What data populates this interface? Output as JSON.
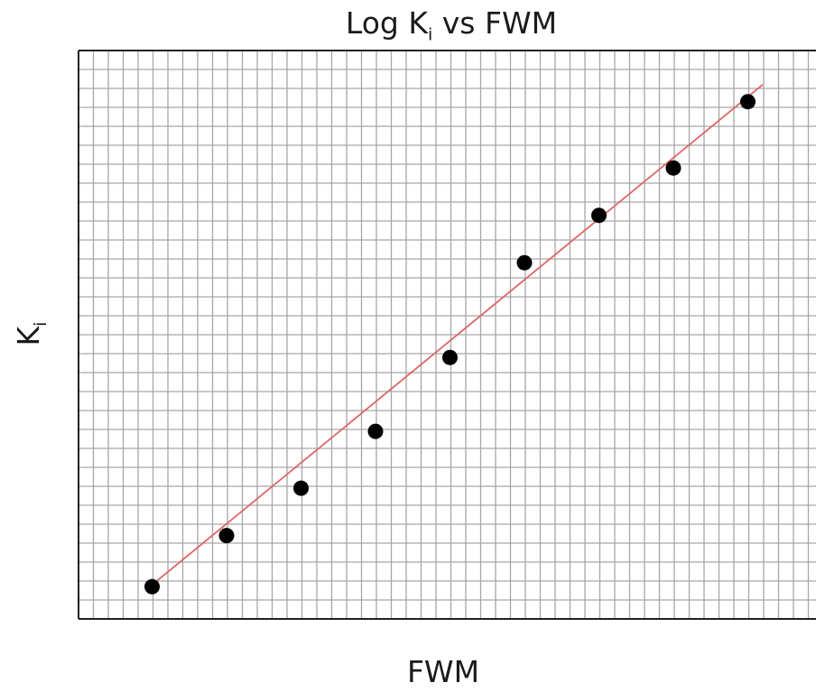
{
  "chart_data": {
    "type": "scatter",
    "title": {
      "prefix": "Log K",
      "subscript": "i",
      "suffix": " vs FWM"
    },
    "xlabel": "FWM",
    "ylabel": {
      "main": "K",
      "subscript": "i"
    },
    "grid": true,
    "xlim": [
      0,
      10
    ],
    "ylim": [
      0,
      30
    ],
    "points": [
      {
        "x": 1,
        "y": 1.7
      },
      {
        "x": 2,
        "y": 4.4
      },
      {
        "x": 3,
        "y": 6.9
      },
      {
        "x": 4,
        "y": 9.9
      },
      {
        "x": 5,
        "y": 13.8
      },
      {
        "x": 6,
        "y": 18.8
      },
      {
        "x": 7,
        "y": 21.3
      },
      {
        "x": 8,
        "y": 23.8
      },
      {
        "x": 9,
        "y": 27.3
      }
    ],
    "trendline": {
      "x": [
        1,
        9.2
      ],
      "y": [
        1.8,
        28.2
      ],
      "color": "#e06666"
    },
    "marker_color": "#000000",
    "grid_color": "#a6a6a6"
  }
}
